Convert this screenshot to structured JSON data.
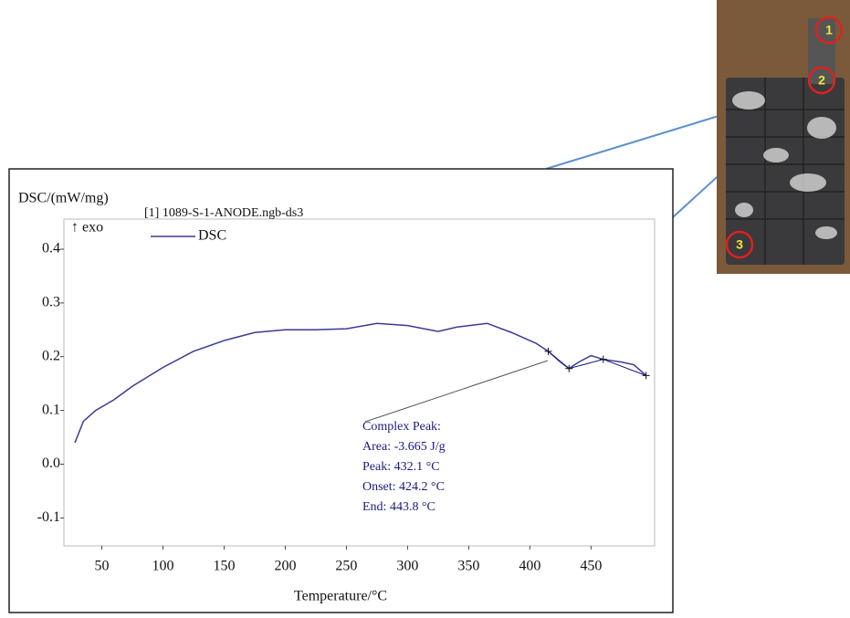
{
  "chart_data": {
    "type": "line",
    "y_label": "DSC/(mW/mg)",
    "x_label": "Temperature/°C",
    "direction_note": "↑ exo",
    "legend_title": "[1] 1089-S-1-ANODE.ngb-ds3",
    "x": [
      28,
      35,
      45,
      60,
      75,
      100,
      125,
      150,
      175,
      200,
      225,
      250,
      275,
      300,
      325,
      340,
      365,
      385,
      405,
      415,
      425,
      432,
      440,
      450,
      460,
      475,
      485,
      495
    ],
    "series": [
      {
        "name": "DSC",
        "color": "#3a3a96",
        "values": [
          0.04,
          0.08,
          0.1,
          0.12,
          0.145,
          0.18,
          0.21,
          0.23,
          0.245,
          0.25,
          0.25,
          0.252,
          0.262,
          0.258,
          0.247,
          0.255,
          0.262,
          0.245,
          0.225,
          0.21,
          0.19,
          0.178,
          0.19,
          0.202,
          0.195,
          0.19,
          0.185,
          0.165
        ]
      }
    ],
    "baseline": {
      "x": [
        415,
        432,
        460,
        495
      ],
      "values": [
        0.21,
        0.178,
        0.195,
        0.165
      ]
    },
    "annotation": [
      "Complex Peak:",
      "Area: -3.665 J/g",
      "Peak: 432.1 °C",
      "Onset: 424.2 °C",
      "End: 443.8 °C"
    ],
    "xlim": [
      19,
      502
    ],
    "ylim": [
      -0.152,
      0.456
    ],
    "xticks": [
      50,
      100,
      150,
      200,
      250,
      300,
      350,
      400,
      450
    ],
    "yticks": [
      -0.1,
      {
        "value": 0,
        "label": "0.0"
      },
      0.1,
      0.2,
      0.3,
      0.4
    ],
    "grid": false
  },
  "photo_markers": [
    "1",
    "2",
    "3"
  ]
}
